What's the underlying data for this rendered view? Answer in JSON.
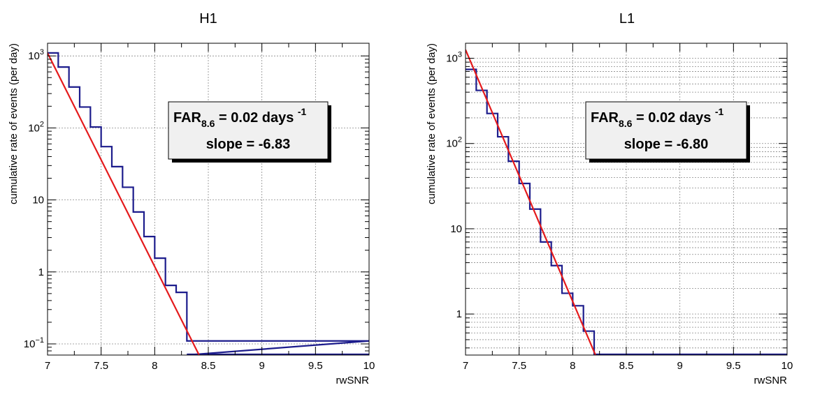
{
  "colors": {
    "histogram": "#1c1c8c",
    "fit": "#e41a1c",
    "grid": "#888888",
    "box_fill": "#f0f0f0"
  },
  "chart_data": [
    {
      "type": "step-histogram",
      "title": "H1",
      "xlabel": "rwSNR",
      "ylabel": "cumulative rate of events (per day)",
      "xlim": [
        7,
        10
      ],
      "ylim": [
        0.07,
        1500
      ],
      "yscale": "log",
      "grid": true,
      "xticks": [
        7,
        7.5,
        8,
        8.5,
        9,
        9.5,
        10
      ],
      "xtick_labels": [
        "7",
        "7.5",
        "8",
        "8.5",
        "9",
        "9.5",
        "10"
      ],
      "yticks": [
        0.1,
        1,
        10,
        100,
        1000
      ],
      "ytick_labels": [
        {
          "base": "10",
          "exp": "−1"
        },
        {
          "base": "1",
          "exp": ""
        },
        {
          "base": "10",
          "exp": ""
        },
        {
          "base": "10",
          "exp": "2"
        },
        {
          "base": "10",
          "exp": "3"
        }
      ],
      "bin_width": 0.1,
      "bin_edges": [
        7.0,
        7.1,
        7.2,
        7.3,
        7.4,
        7.5,
        7.6,
        7.7,
        7.8,
        7.9,
        8.0,
        8.1,
        8.2,
        8.3,
        10.0
      ],
      "bin_values": [
        1100,
        700,
        370,
        195,
        103,
        55,
        29,
        15,
        6.8,
        3.1,
        1.55,
        0.65,
        0.52,
        0.11
      ],
      "fit": {
        "x_start": 7.0,
        "x_end": 8.45,
        "slope": -6.83,
        "log10_y_at_x_start": 3.04
      },
      "annotation": {
        "far_label": "FAR",
        "far_subscript": "8.6",
        "far_value": " = 0.02 days ",
        "far_superscript": "-1",
        "slope_text": "slope = -6.83"
      }
    },
    {
      "type": "step-histogram",
      "title": "L1",
      "xlabel": "rwSNR",
      "ylabel": "cumulative rate of events (per day)",
      "xlim": [
        7,
        10
      ],
      "ylim": [
        0.33,
        1500
      ],
      "yscale": "log",
      "grid": true,
      "xticks": [
        7,
        7.5,
        8,
        8.5,
        9,
        9.5,
        10
      ],
      "xtick_labels": [
        "7",
        "7.5",
        "8",
        "8.5",
        "9",
        "9.5",
        "10"
      ],
      "yticks": [
        1,
        10,
        100,
        1000
      ],
      "ytick_labels": [
        {
          "base": "1",
          "exp": ""
        },
        {
          "base": "10",
          "exp": ""
        },
        {
          "base": "10",
          "exp": "2"
        },
        {
          "base": "10",
          "exp": "3"
        }
      ],
      "bin_width": 0.1,
      "bin_edges": [
        7.0,
        7.1,
        7.2,
        7.3,
        7.4,
        7.5,
        7.6,
        7.7,
        7.8,
        7.9,
        8.0,
        8.1,
        8.2
      ],
      "bin_values": [
        740,
        420,
        225,
        120,
        62,
        34,
        17,
        7.0,
        3.7,
        1.75,
        1.25,
        0.63
      ],
      "tail_x_end": 10.0,
      "fit": {
        "x_start": 7.0,
        "x_end": 8.22,
        "slope": -6.8,
        "log10_y_at_x_start": 3.1
      },
      "annotation": {
        "far_label": "FAR",
        "far_subscript": "8.6",
        "far_value": " = 0.02 days ",
        "far_superscript": "-1",
        "slope_text": "slope = -6.80"
      }
    }
  ]
}
